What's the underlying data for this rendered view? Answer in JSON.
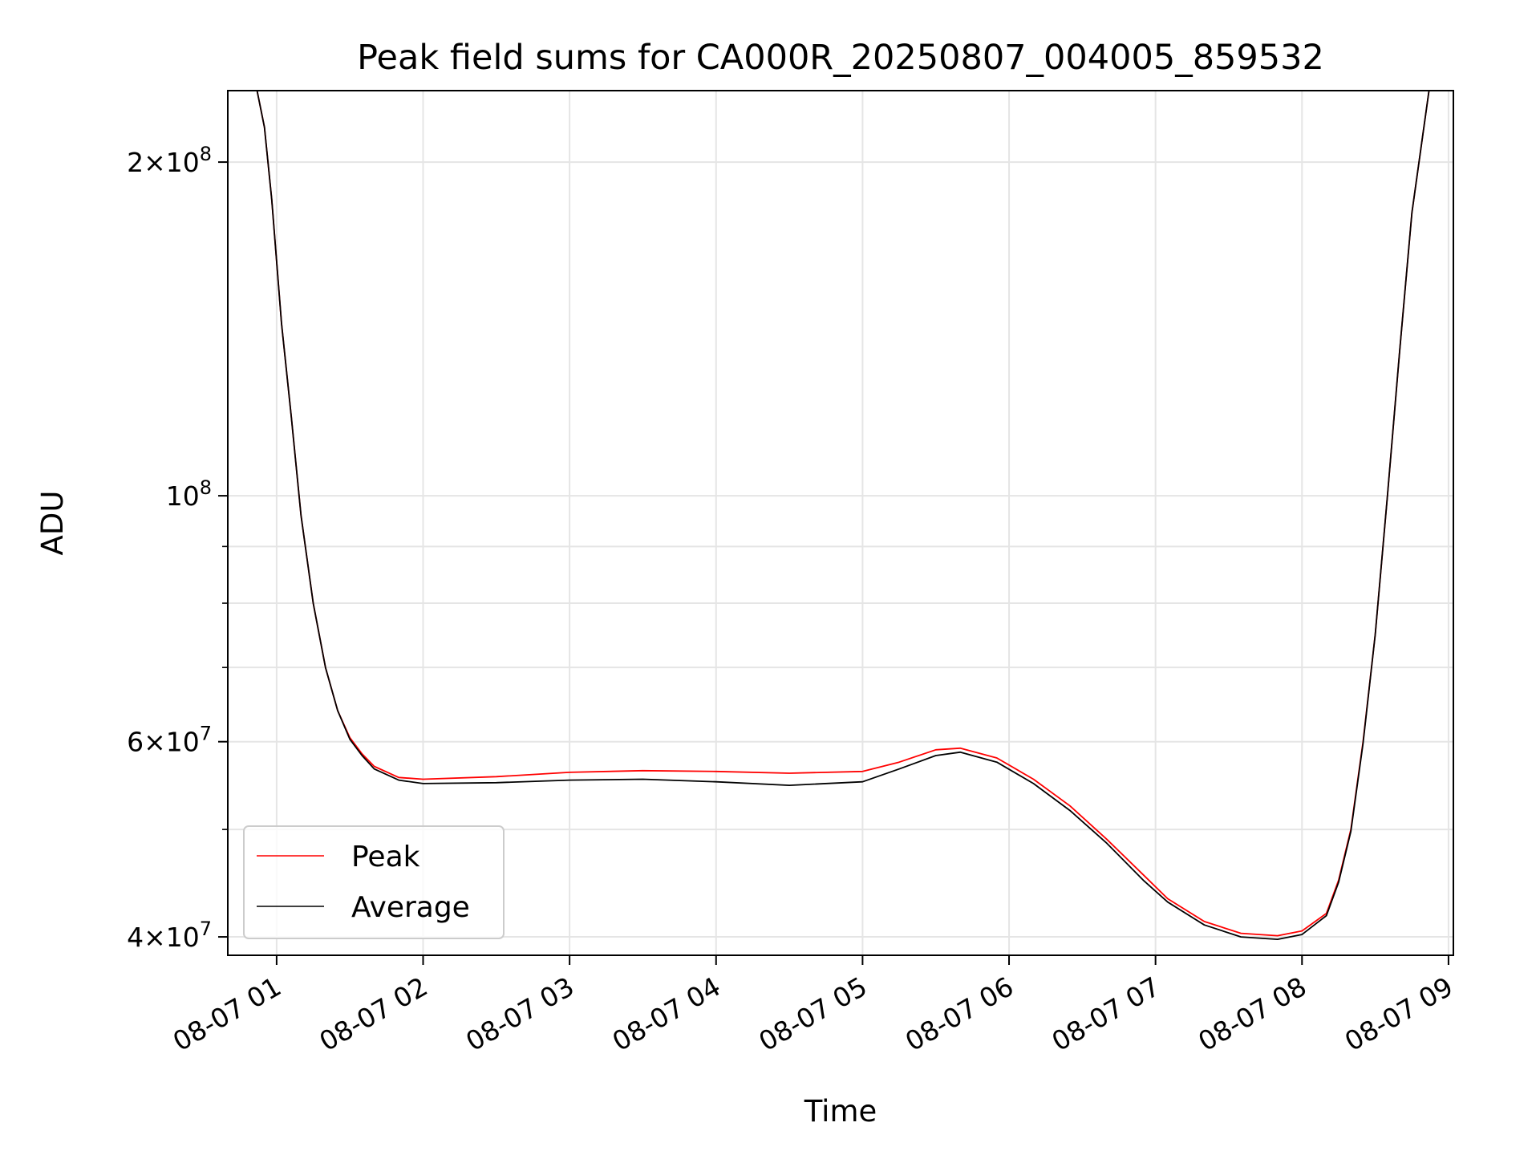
{
  "chart_data": {
    "type": "line",
    "title": "Peak field sums for CA000R_20250807_004005_859532",
    "xlabel": "Time",
    "ylabel": "ADU",
    "yscale": "log",
    "xlim": [
      "2025-08-07 00:40",
      "2025-08-07 09:02"
    ],
    "ylim": [
      38500000,
      232000000
    ],
    "grid": true,
    "legend": "lower-left",
    "x_ticks": [
      "2025-08-07 01:00",
      "2025-08-07 02:00",
      "2025-08-07 03:00",
      "2025-08-07 04:00",
      "2025-08-07 05:00",
      "2025-08-07 06:00",
      "2025-08-07 07:00",
      "2025-08-07 08:00",
      "2025-08-07 09:00"
    ],
    "x_tick_labels": [
      "08-07 01",
      "08-07 02",
      "08-07 03",
      "08-07 04",
      "08-07 05",
      "08-07 06",
      "08-07 07",
      "08-07 08",
      "08-07 09"
    ],
    "y_ticks": [
      {
        "value": 40000000,
        "base": "4",
        "exp": "7"
      },
      {
        "value": 60000000,
        "base": "6",
        "exp": "7"
      },
      {
        "value": 100000000,
        "base": "",
        "exp": "8"
      },
      {
        "value": 200000000,
        "base": "2",
        "exp": "8"
      }
    ],
    "y_minor_ticks": [
      50000000,
      70000000,
      80000000,
      90000000
    ],
    "series": [
      {
        "name": "Peak",
        "color": "#ff0000",
        "x": [
          "2025-08-07 00:40",
          "2025-08-07 00:52",
          "2025-08-07 00:55",
          "2025-08-07 00:58",
          "2025-08-07 01:02",
          "2025-08-07 01:06",
          "2025-08-07 01:10",
          "2025-08-07 01:15",
          "2025-08-07 01:20",
          "2025-08-07 01:25",
          "2025-08-07 01:30",
          "2025-08-07 01:35",
          "2025-08-07 01:40",
          "2025-08-07 01:50",
          "2025-08-07 02:00",
          "2025-08-07 02:30",
          "2025-08-07 03:00",
          "2025-08-07 03:30",
          "2025-08-07 04:00",
          "2025-08-07 04:30",
          "2025-08-07 05:00",
          "2025-08-07 05:15",
          "2025-08-07 05:30",
          "2025-08-07 05:40",
          "2025-08-07 05:55",
          "2025-08-07 06:10",
          "2025-08-07 06:25",
          "2025-08-07 06:40",
          "2025-08-07 06:55",
          "2025-08-07 07:05",
          "2025-08-07 07:20",
          "2025-08-07 07:35",
          "2025-08-07 07:50",
          "2025-08-07 08:00",
          "2025-08-07 08:10",
          "2025-08-07 08:15",
          "2025-08-07 08:20",
          "2025-08-07 08:25",
          "2025-08-07 08:30",
          "2025-08-07 08:35",
          "2025-08-07 08:40",
          "2025-08-07 08:45",
          "2025-08-07 08:52",
          "2025-08-07 09:02"
        ],
        "y": [
          232000000,
          232000000,
          215000000,
          185000000,
          143000000,
          118000000,
          96000000,
          80000000,
          70000000,
          64000000,
          60500000,
          58500000,
          57000000,
          55700000,
          55500000,
          55800000,
          56300000,
          56500000,
          56400000,
          56200000,
          56400000,
          57500000,
          59000000,
          59200000,
          58000000,
          55500000,
          52500000,
          49000000,
          45500000,
          43300000,
          41300000,
          40300000,
          40100000,
          40500000,
          42000000,
          45000000,
          50000000,
          60000000,
          75000000,
          100000000,
          135000000,
          180000000,
          232000000,
          232000000
        ]
      },
      {
        "name": "Average",
        "color": "#000000",
        "x": [
          "2025-08-07 00:40",
          "2025-08-07 00:52",
          "2025-08-07 00:55",
          "2025-08-07 00:58",
          "2025-08-07 01:02",
          "2025-08-07 01:06",
          "2025-08-07 01:10",
          "2025-08-07 01:15",
          "2025-08-07 01:20",
          "2025-08-07 01:25",
          "2025-08-07 01:30",
          "2025-08-07 01:35",
          "2025-08-07 01:40",
          "2025-08-07 01:50",
          "2025-08-07 02:00",
          "2025-08-07 02:30",
          "2025-08-07 03:00",
          "2025-08-07 03:30",
          "2025-08-07 04:00",
          "2025-08-07 04:30",
          "2025-08-07 05:00",
          "2025-08-07 05:15",
          "2025-08-07 05:30",
          "2025-08-07 05:40",
          "2025-08-07 05:55",
          "2025-08-07 06:10",
          "2025-08-07 06:25",
          "2025-08-07 06:40",
          "2025-08-07 06:55",
          "2025-08-07 07:05",
          "2025-08-07 07:20",
          "2025-08-07 07:35",
          "2025-08-07 07:50",
          "2025-08-07 08:00",
          "2025-08-07 08:10",
          "2025-08-07 08:15",
          "2025-08-07 08:20",
          "2025-08-07 08:25",
          "2025-08-07 08:30",
          "2025-08-07 08:35",
          "2025-08-07 08:40",
          "2025-08-07 08:45",
          "2025-08-07 08:52",
          "2025-08-07 09:02"
        ],
        "y": [
          232000000,
          232000000,
          215000000,
          185000000,
          143000000,
          118000000,
          96000000,
          80000000,
          70000000,
          64000000,
          60300000,
          58300000,
          56700000,
          55400000,
          55000000,
          55100000,
          55400000,
          55500000,
          55200000,
          54800000,
          55200000,
          56700000,
          58300000,
          58700000,
          57500000,
          55000000,
          52000000,
          48600000,
          45000000,
          43000000,
          41000000,
          40000000,
          39800000,
          40200000,
          41800000,
          44800000,
          49800000,
          59800000,
          75000000,
          100000000,
          135000000,
          180000000,
          232000000,
          232000000
        ]
      }
    ]
  }
}
